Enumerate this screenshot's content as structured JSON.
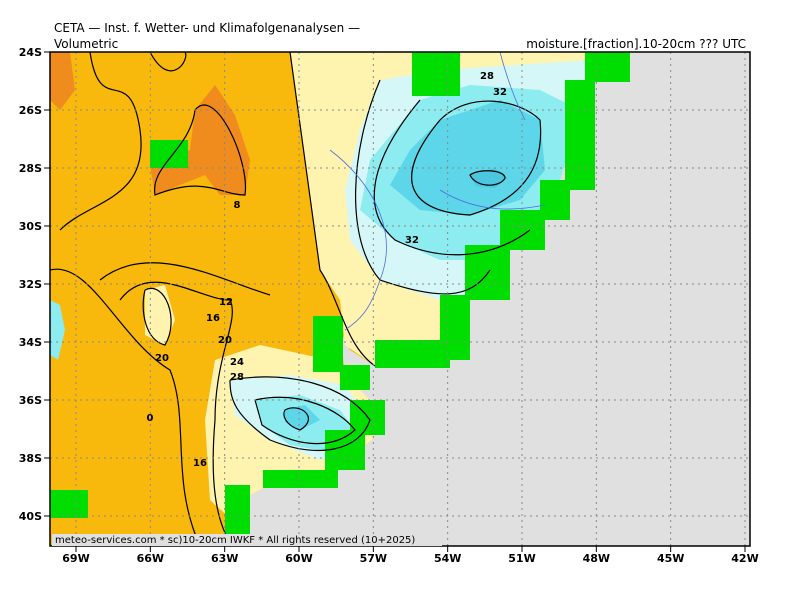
{
  "header": {
    "title": "CETA — Inst. f. Wetter- und Klimafolgenanalysen —",
    "subtitle": "Volumetric",
    "field": "moisture.[fraction].10-20cm ??? UTC"
  },
  "footer": "meteo-services.com * sc)10-20cm IWKF * All rights reserved (10+2025)",
  "lat_labels": [
    "24S",
    "26S",
    "28S",
    "30S",
    "32S",
    "34S",
    "36S",
    "38S",
    "40S"
  ],
  "lon_labels": [
    "69W",
    "66W",
    "63W",
    "60W",
    "57W",
    "54W",
    "51W",
    "48W",
    "45W",
    "42W"
  ],
  "contour_labels": [
    "28",
    "32",
    "8",
    "32",
    "12",
    "16",
    "20",
    "20",
    "24",
    "28",
    "0",
    "16"
  ]
}
